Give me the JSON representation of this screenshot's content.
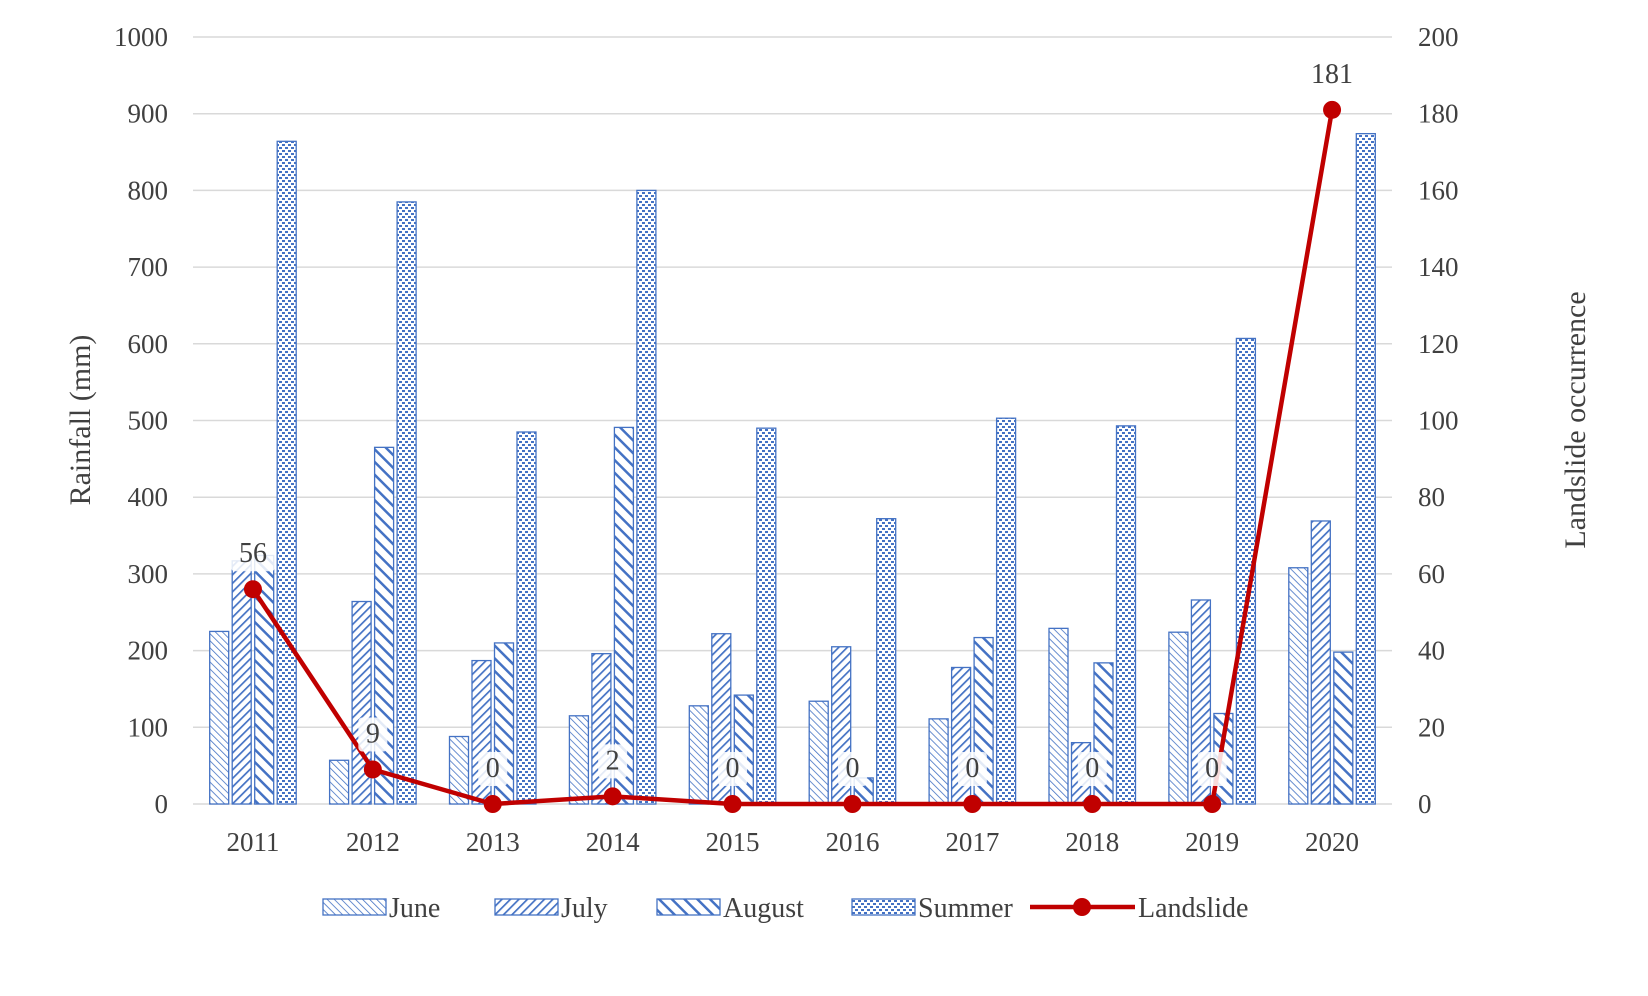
{
  "chart_data": {
    "type": "bar",
    "categories": [
      "2011",
      "2012",
      "2013",
      "2014",
      "2015",
      "2016",
      "2017",
      "2018",
      "2019",
      "2020"
    ],
    "series": [
      {
        "name": "June",
        "axis": "left",
        "pattern": "june",
        "values": [
          225,
          57,
          88,
          115,
          128,
          134,
          111,
          229,
          224,
          308
        ]
      },
      {
        "name": "July",
        "axis": "left",
        "pattern": "july",
        "values": [
          317,
          264,
          187,
          196,
          222,
          205,
          178,
          80,
          266,
          369
        ]
      },
      {
        "name": "August",
        "axis": "left",
        "pattern": "august",
        "values": [
          324,
          465,
          210,
          491,
          142,
          34,
          217,
          184,
          118,
          198
        ]
      },
      {
        "name": "Summer",
        "axis": "left",
        "pattern": "summer",
        "values": [
          864,
          785,
          485,
          800,
          490,
          372,
          503,
          493,
          607,
          874
        ]
      },
      {
        "name": "Landslide",
        "axis": "right",
        "type": "line",
        "values": [
          56,
          9,
          0,
          2,
          0,
          0,
          0,
          0,
          0,
          181
        ]
      }
    ],
    "ylabel": "Rainfall (mm)",
    "y2label": "Landslide occurrence",
    "ylim": [
      0,
      1000
    ],
    "y2lim": [
      0,
      200
    ],
    "yticks": [
      "0",
      "100",
      "200",
      "300",
      "400",
      "500",
      "600",
      "700",
      "800",
      "900",
      "1000"
    ],
    "y2ticks": [
      "0",
      "20",
      "40",
      "60",
      "80",
      "100",
      "120",
      "140",
      "160",
      "180",
      "200"
    ],
    "data_labels": [
      "56",
      "9",
      "0",
      "2",
      "0",
      "0",
      "0",
      "0",
      "0",
      "181"
    ],
    "grid": true,
    "legend": "bottom",
    "colors": {
      "bar": "#4472c4",
      "line": "#c00000",
      "text": "#404040",
      "grid": "#d9d9d9"
    }
  }
}
